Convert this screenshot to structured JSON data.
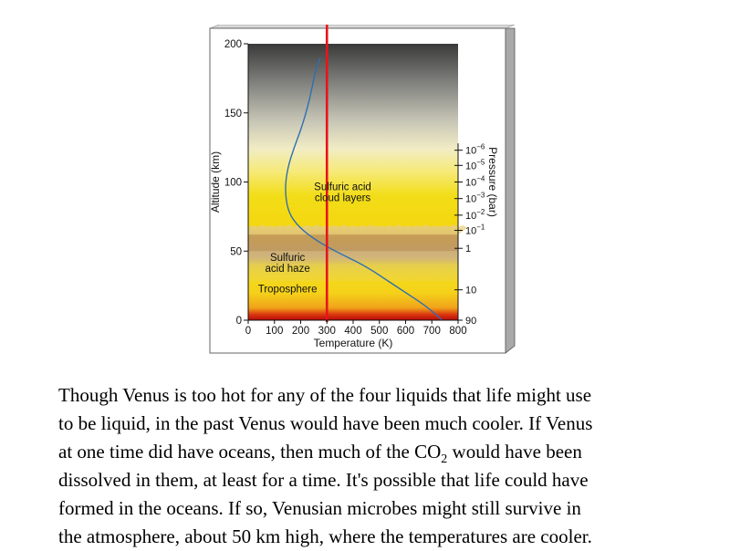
{
  "chart_data": {
    "type": "line",
    "xlabel": "Temperature (K)",
    "ylabel": "Altitude (km)",
    "y2label": "Pressure (bar)",
    "xlim": [
      0,
      800
    ],
    "ylim": [
      0,
      200
    ],
    "x_ticks": [
      "0",
      "100",
      "200",
      "300",
      "400",
      "500",
      "600",
      "700",
      "800"
    ],
    "y_ticks": [
      "0",
      "50",
      "100",
      "150",
      "200"
    ],
    "pressure_ticks": [
      {
        "altitude": 0,
        "base": "90",
        "exp": ""
      },
      {
        "altitude": 22,
        "base": "10",
        "exp": ""
      },
      {
        "altitude": 52,
        "base": "1",
        "exp": ""
      },
      {
        "altitude": 65,
        "base": "10",
        "exp": "−1"
      },
      {
        "altitude": 76,
        "base": "10",
        "exp": "−2"
      },
      {
        "altitude": 88,
        "base": "10",
        "exp": "−3"
      },
      {
        "altitude": 100,
        "base": "10",
        "exp": "−4"
      },
      {
        "altitude": 112,
        "base": "10",
        "exp": "−5"
      },
      {
        "altitude": 123,
        "base": "10",
        "exp": "−6"
      }
    ],
    "temperature_profile": {
      "color": "#2f6fb0",
      "points": [
        [
          740,
          0
        ],
        [
          680,
          10
        ],
        [
          600,
          20
        ],
        [
          520,
          30
        ],
        [
          440,
          40
        ],
        [
          330,
          50
        ],
        [
          240,
          60
        ],
        [
          180,
          70
        ],
        [
          150,
          80
        ],
        [
          140,
          95
        ],
        [
          150,
          110
        ],
        [
          175,
          125
        ],
        [
          205,
          140
        ],
        [
          235,
          160
        ],
        [
          255,
          180
        ],
        [
          275,
          190
        ]
      ]
    },
    "reference_line": {
      "x": 300,
      "color": "#e8141b"
    },
    "annotations": {
      "clouds": [
        "Sulfuric acid",
        "cloud layers"
      ],
      "haze": [
        "Sulfuric",
        "acid haze"
      ],
      "troposphere": "Troposphere"
    },
    "colors": {
      "yellow": "#f2dd18",
      "cloud": "#c9a15f",
      "gray_top": "#3a3a3a",
      "red_bottom": "#c8100c"
    }
  },
  "caption": {
    "l1": "Though Venus is too hot for any of the four liquids that life might use",
    "l2": "to be liquid, in the past Venus would have been much cooler.  If Venus",
    "l3_pre": "at one time did have oceans, then much of the CO",
    "l3_sub": "2",
    "l3_post": " would have been",
    "l4": "dissolved in them, at least for a time.  It's possible that life could have",
    "l5": "formed in the oceans.  If so, Venusian microbes might still survive in",
    "l6": "the atmosphere, about 50 km high, where the temperatures are cooler."
  }
}
